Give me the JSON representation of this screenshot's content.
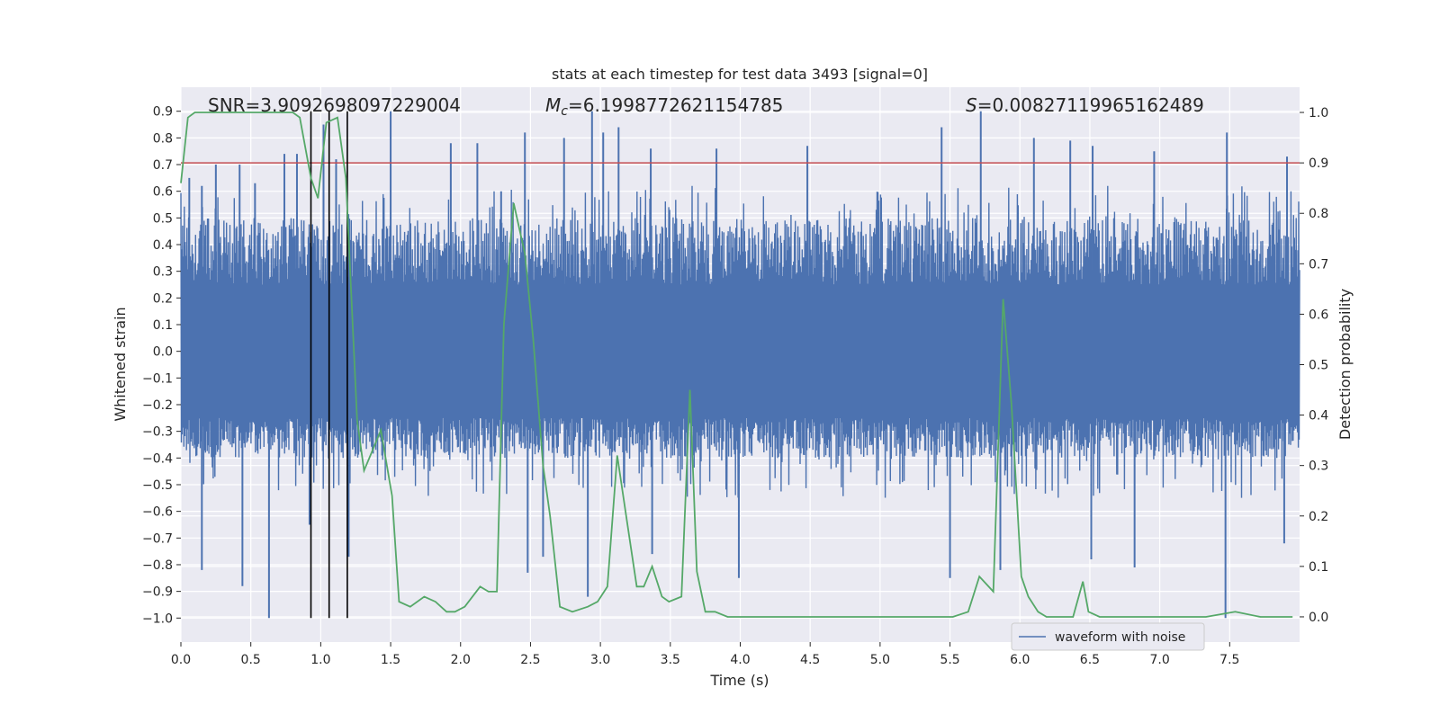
{
  "chart_data": {
    "type": "line",
    "title": "stats at each timestep for test data 3493 [signal=0]",
    "xlabel": "Time (s)",
    "ylabel": "Whitened strain",
    "ylabel_right": "Detection probability",
    "xlim": [
      0.0,
      8.0
    ],
    "ylim": [
      -1.09,
      0.99
    ],
    "ylim_right": [
      -0.05,
      1.05
    ],
    "x_ticks": [
      0.0,
      0.5,
      1.0,
      1.5,
      2.0,
      2.5,
      3.0,
      3.5,
      4.0,
      4.5,
      5.0,
      5.5,
      6.0,
      6.5,
      7.0,
      7.5
    ],
    "x_tick_labels": [
      "0.0",
      "0.5",
      "1.0",
      "1.5",
      "2.0",
      "2.5",
      "3.0",
      "3.5",
      "4.0",
      "4.5",
      "5.0",
      "5.5",
      "6.0",
      "6.5",
      "7.0",
      "7.5"
    ],
    "y_ticks": [
      -1.0,
      -0.9,
      -0.8,
      -0.7,
      -0.6,
      -0.5,
      -0.4,
      -0.3,
      -0.2,
      -0.1,
      0.0,
      0.1,
      0.2,
      0.3,
      0.4,
      0.5,
      0.6,
      0.7,
      0.8,
      0.9
    ],
    "y_tick_labels": [
      "−1.0",
      "−0.9",
      "−0.8",
      "−0.7",
      "−0.6",
      "−0.5",
      "−0.4",
      "−0.3",
      "−0.2",
      "−0.1",
      "0.0",
      "0.1",
      "0.2",
      "0.3",
      "0.4",
      "0.5",
      "0.6",
      "0.7",
      "0.8",
      "0.9"
    ],
    "y_right_ticks": [
      0.0,
      0.1,
      0.2,
      0.3,
      0.4,
      0.5,
      0.6,
      0.7,
      0.8,
      0.9,
      1.0
    ],
    "y_right_tick_labels": [
      "0.0",
      "0.1",
      "0.2",
      "0.3",
      "0.4",
      "0.5",
      "0.6",
      "0.7",
      "0.8",
      "0.9",
      "1.0"
    ],
    "annotations": {
      "snr": "SNR=3.9092698097229004",
      "mc_symbol": "M",
      "mc_sub": "c",
      "mc_value": "=6.1998772621154785",
      "s_symbol": "S",
      "s_value": "=0.00827119965162489"
    },
    "series": [
      {
        "name": "waveform with noise",
        "color": "#4c72b0",
        "kind": "noise",
        "x_range": [
          0.0,
          8.0
        ],
        "typical_amplitude": [
          -0.4,
          0.5
        ],
        "peaks": [
          {
            "x": 0.06,
            "y": 0.65
          },
          {
            "x": 0.15,
            "y": 0.62
          },
          {
            "x": 0.25,
            "y": 0.7
          },
          {
            "x": 0.42,
            "y": 0.7
          },
          {
            "x": 0.53,
            "y": 0.63
          },
          {
            "x": 0.74,
            "y": 0.74
          },
          {
            "x": 0.83,
            "y": 0.74
          },
          {
            "x": 1.02,
            "y": 0.85
          },
          {
            "x": 1.11,
            "y": 0.72
          },
          {
            "x": 1.5,
            "y": 0.9
          },
          {
            "x": 1.93,
            "y": 0.78
          },
          {
            "x": 2.12,
            "y": 0.78
          },
          {
            "x": 2.29,
            "y": 0.6
          },
          {
            "x": 2.46,
            "y": 0.82
          },
          {
            "x": 2.74,
            "y": 0.8
          },
          {
            "x": 2.94,
            "y": 0.9
          },
          {
            "x": 3.02,
            "y": 0.82
          },
          {
            "x": 3.13,
            "y": 0.84
          },
          {
            "x": 3.36,
            "y": 0.76
          },
          {
            "x": 3.83,
            "y": 0.76
          },
          {
            "x": 4.48,
            "y": 0.77
          },
          {
            "x": 5.44,
            "y": 0.84
          },
          {
            "x": 5.72,
            "y": 0.9
          },
          {
            "x": 6.1,
            "y": 0.8
          },
          {
            "x": 6.36,
            "y": 0.79
          },
          {
            "x": 6.52,
            "y": 0.77
          },
          {
            "x": 6.96,
            "y": 0.75
          },
          {
            "x": 7.48,
            "y": 0.82
          },
          {
            "x": 7.91,
            "y": 0.73
          }
        ],
        "troughs": [
          {
            "x": 0.15,
            "y": -0.82
          },
          {
            "x": 0.44,
            "y": -0.88
          },
          {
            "x": 0.63,
            "y": -1.0
          },
          {
            "x": 0.92,
            "y": -0.65
          },
          {
            "x": 1.2,
            "y": -0.77
          },
          {
            "x": 2.48,
            "y": -0.83
          },
          {
            "x": 2.59,
            "y": -0.77
          },
          {
            "x": 2.91,
            "y": -0.92
          },
          {
            "x": 3.37,
            "y": -0.76
          },
          {
            "x": 3.99,
            "y": -0.85
          },
          {
            "x": 5.5,
            "y": -0.85
          },
          {
            "x": 5.86,
            "y": -0.82
          },
          {
            "x": 6.82,
            "y": -0.81
          },
          {
            "x": 6.51,
            "y": -0.78
          },
          {
            "x": 7.47,
            "y": -1.0
          },
          {
            "x": 7.89,
            "y": -0.72
          }
        ]
      },
      {
        "name": "detection probability",
        "color": "#55a868",
        "axis": "right",
        "x": [
          0.0,
          0.05,
          0.1,
          0.2,
          0.3,
          0.4,
          0.5,
          0.6,
          0.7,
          0.8,
          0.85,
          0.93,
          0.98,
          1.04,
          1.12,
          1.18,
          1.26,
          1.31,
          1.37,
          1.43,
          1.51,
          1.56,
          1.64,
          1.74,
          1.82,
          1.9,
          1.96,
          2.03,
          2.14,
          2.2,
          2.26,
          2.31,
          2.38,
          2.46,
          2.52,
          2.59,
          2.64,
          2.71,
          2.8,
          2.91,
          2.98,
          3.05,
          3.12,
          3.19,
          3.26,
          3.31,
          3.37,
          3.44,
          3.49,
          3.58,
          3.64,
          3.69,
          3.75,
          3.82,
          3.91,
          4.01,
          4.11,
          4.26,
          4.5,
          4.76,
          4.98,
          5.13,
          5.3,
          5.43,
          5.52,
          5.63,
          5.71,
          5.81,
          5.88,
          5.94,
          6.01,
          6.06,
          6.13,
          6.19,
          6.27,
          6.38,
          6.45,
          6.49,
          6.57,
          6.65,
          6.76,
          6.86,
          6.97,
          7.06,
          7.16,
          7.33,
          7.54,
          7.72,
          7.86,
          7.95
        ],
        "y": [
          0.86,
          0.99,
          1.0,
          1.0,
          1.0,
          1.0,
          1.0,
          1.0,
          1.0,
          1.0,
          0.99,
          0.87,
          0.83,
          0.98,
          0.99,
          0.87,
          0.39,
          0.29,
          0.33,
          0.37,
          0.24,
          0.03,
          0.02,
          0.04,
          0.03,
          0.01,
          0.01,
          0.02,
          0.06,
          0.05,
          0.05,
          0.58,
          0.82,
          0.72,
          0.55,
          0.3,
          0.2,
          0.02,
          0.01,
          0.02,
          0.03,
          0.06,
          0.32,
          0.19,
          0.06,
          0.06,
          0.1,
          0.04,
          0.03,
          0.04,
          0.45,
          0.09,
          0.01,
          0.01,
          0.0,
          0.0,
          0.0,
          0.0,
          0.0,
          0.0,
          0.0,
          0.0,
          0.0,
          0.0,
          0.0,
          0.01,
          0.08,
          0.05,
          0.63,
          0.42,
          0.08,
          0.04,
          0.01,
          0.0,
          0.0,
          0.0,
          0.07,
          0.01,
          0.0,
          0.0,
          0.0,
          0.0,
          0.0,
          0.0,
          0.0,
          0.0,
          0.01,
          0.0,
          0.0,
          0.0
        ]
      }
    ],
    "threshold_line": {
      "y_right": 0.9,
      "color": "#c44e52"
    },
    "vertical_markers": {
      "x": [
        0.93,
        1.06,
        1.19
      ],
      "y_from": -1.0,
      "y_to": 0.9,
      "color": "#000000"
    },
    "legend": {
      "entries": [
        "waveform with noise"
      ],
      "placement": "lower-right"
    }
  }
}
